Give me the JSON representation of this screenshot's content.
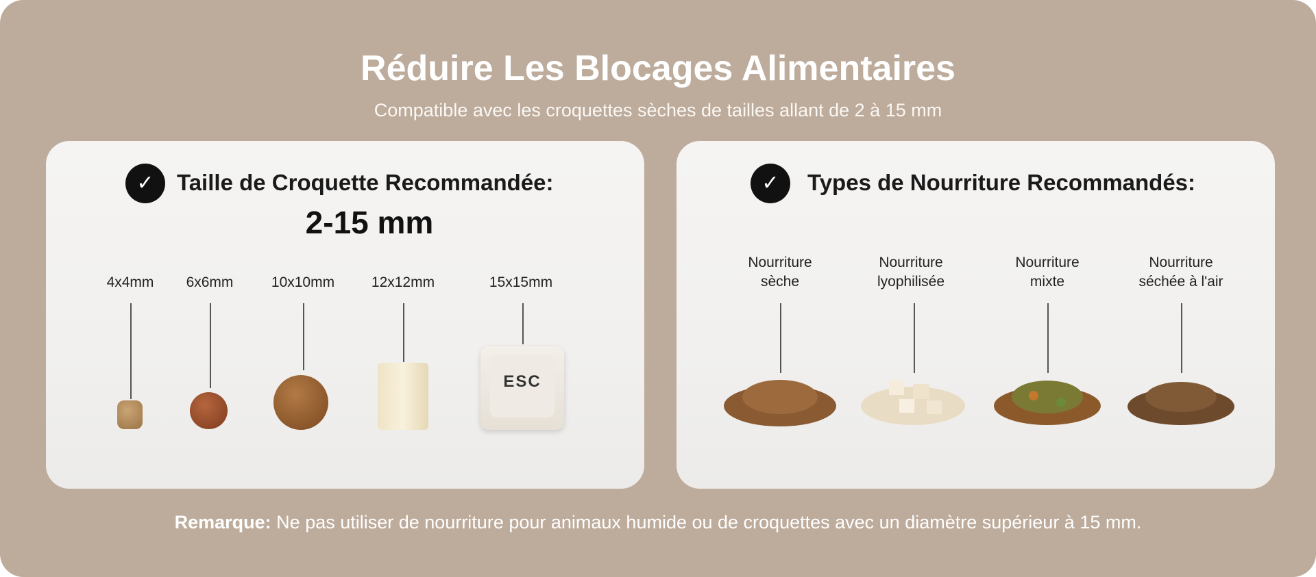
{
  "header": {
    "title": "Réduire Les Blocages Alimentaires",
    "subtitle": "Compatible avec les croquettes sèches de tailles allant de 2 à 15 mm"
  },
  "left_card": {
    "title": "Taille de Croquette Recommandée:",
    "range": "2-15 mm",
    "sizes": [
      "4x4mm",
      "6x6mm",
      "10x10mm",
      "12x12mm",
      "15x15mm"
    ],
    "keycap_label": "ESC"
  },
  "right_card": {
    "title": "Types de Nourriture Recommandés:",
    "foods": [
      {
        "line1": "Nourriture",
        "line2": "sèche"
      },
      {
        "line1": "Nourriture",
        "line2": "lyophilisée"
      },
      {
        "line1": "Nourriture",
        "line2": "mixte"
      },
      {
        "line1": "Nourriture",
        "line2": "séchée à l'air"
      }
    ]
  },
  "note": {
    "label": "Remarque:",
    "text": " Ne pas utiliser de nourriture pour animaux humide ou de croquettes avec un diamètre supérieur à 15 mm."
  },
  "colors": {
    "background": "#bdab9b",
    "card": "#f3f2f0",
    "check_circle": "#111111"
  },
  "icons": {
    "check": "check-circle-icon"
  }
}
